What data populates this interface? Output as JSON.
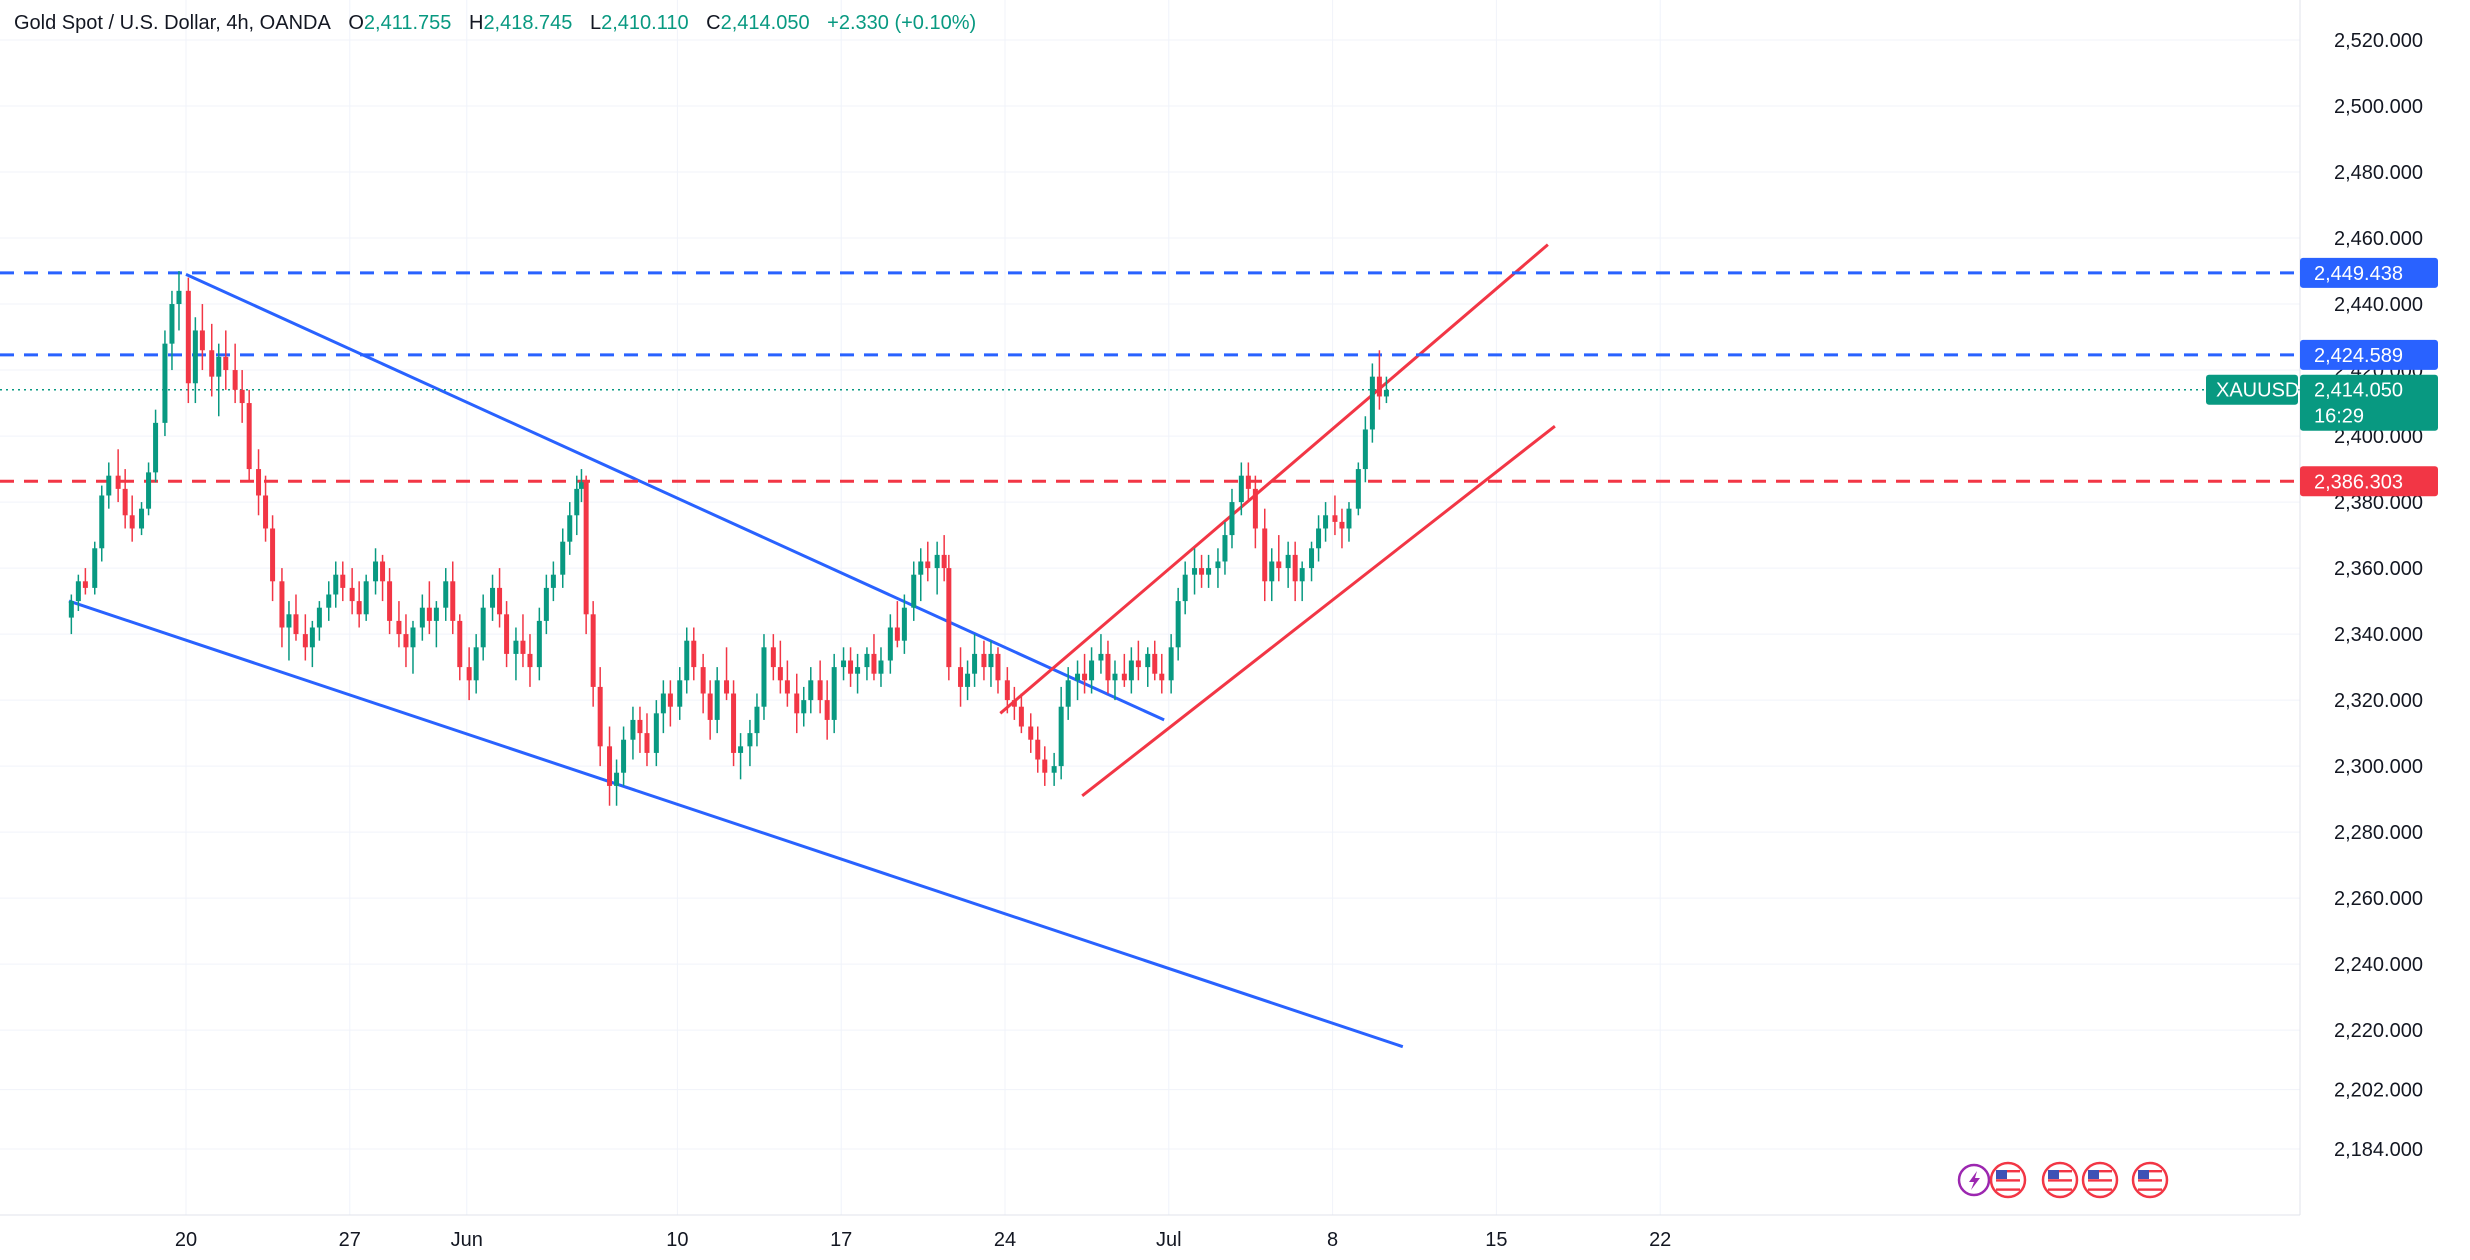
{
  "legend": {
    "symbol_desc": "Gold Spot / U.S. Dollar, 4h, OANDA",
    "o_label": "O",
    "o_value": "2,411.755",
    "h_label": "H",
    "h_value": "2,418.745",
    "l_label": "L",
    "l_value": "2,410.110",
    "c_label": "C",
    "c_value": "2,414.050",
    "change": "+2.330 (+0.10%)"
  },
  "colors": {
    "up": "#089981",
    "down": "#f23645",
    "blue_line": "#2962ff",
    "red_line": "#f23645",
    "grid": "#f0f3fa",
    "price_badge": "#089981"
  },
  "chart_data": {
    "type": "candlestick",
    "title": "Gold Spot / U.S. Dollar, 4h, OANDA",
    "symbol": "XAUUSD",
    "ylim": [
      2175,
      2535
    ],
    "y_ticks": [
      "2,520.000",
      "2,500.000",
      "2,480.000",
      "2,460.000",
      "2,440.000",
      "2,420.000",
      "2,400.000",
      "2,380.000",
      "2,360.000",
      "2,340.000",
      "2,320.000",
      "2,300.000",
      "2,280.000",
      "2,260.000",
      "2,240.000",
      "2,220.000",
      "2,202.000",
      "2,184.000"
    ],
    "y_tick_values": [
      2520,
      2500,
      2480,
      2460,
      2440,
      2420,
      2400,
      2380,
      2360,
      2340,
      2320,
      2300,
      2280,
      2260,
      2240,
      2220,
      2202,
      2184
    ],
    "x_ticks": [
      "20",
      "27",
      "Jun",
      "10",
      "17",
      "24",
      "Jul",
      "8",
      "15",
      "22"
    ],
    "x_tick_days": [
      0,
      7,
      12,
      21,
      28,
      35,
      42,
      49,
      56,
      63
    ],
    "x_domain_days": [
      -5,
      64.5
    ],
    "current_price": {
      "label": "XAUUSD",
      "value": "2,414.050",
      "countdown": "16:29",
      "price": 2414.05
    },
    "horizontal_lines": [
      {
        "price": 2449.438,
        "label": "2,449.438",
        "color": "blue"
      },
      {
        "price": 2424.589,
        "label": "2,424.589",
        "color": "blue"
      },
      {
        "price": 2386.303,
        "label": "2,386.303",
        "color": "red"
      }
    ],
    "trend_lines": [
      {
        "color": "blue",
        "start": [
          0,
          2449
        ],
        "end": [
          41.8,
          2314
        ]
      },
      {
        "color": "blue",
        "start": [
          -5,
          2350
        ],
        "end": [
          52.0,
          2215
        ]
      },
      {
        "color": "red",
        "start": [
          34.8,
          2316
        ],
        "end": [
          58.2,
          2458
        ]
      },
      {
        "color": "red",
        "start": [
          38.3,
          2291
        ],
        "end": [
          58.5,
          2403
        ]
      }
    ],
    "candles": [
      [
        -4.9,
        2345,
        2352,
        2340,
        2350
      ],
      [
        -4.6,
        2350,
        2358,
        2347,
        2356
      ],
      [
        -4.3,
        2356,
        2360,
        2352,
        2354
      ],
      [
        -3.9,
        2354,
        2368,
        2352,
        2366
      ],
      [
        -3.6,
        2366,
        2385,
        2362,
        2382
      ],
      [
        -3.3,
        2382,
        2392,
        2378,
        2388
      ],
      [
        -2.9,
        2388,
        2396,
        2380,
        2384
      ],
      [
        -2.6,
        2384,
        2390,
        2372,
        2376
      ],
      [
        -2.3,
        2376,
        2382,
        2368,
        2372
      ],
      [
        -1.9,
        2372,
        2380,
        2370,
        2378
      ],
      [
        -1.6,
        2378,
        2392,
        2376,
        2389
      ],
      [
        -1.3,
        2389,
        2408,
        2386,
        2404
      ],
      [
        -0.9,
        2404,
        2432,
        2400,
        2428
      ],
      [
        -0.6,
        2428,
        2444,
        2420,
        2440
      ],
      [
        -0.3,
        2440,
        2450,
        2432,
        2444
      ],
      [
        0.1,
        2444,
        2448,
        2410,
        2416
      ],
      [
        0.4,
        2416,
        2436,
        2410,
        2432
      ],
      [
        0.7,
        2432,
        2440,
        2420,
        2426
      ],
      [
        1.1,
        2426,
        2434,
        2412,
        2418
      ],
      [
        1.4,
        2418,
        2428,
        2406,
        2424
      ],
      [
        1.7,
        2424,
        2432,
        2414,
        2420
      ],
      [
        2.1,
        2420,
        2428,
        2410,
        2414
      ],
      [
        2.4,
        2414,
        2420,
        2404,
        2410
      ],
      [
        2.7,
        2410,
        2414,
        2386,
        2390
      ],
      [
        3.1,
        2390,
        2396,
        2376,
        2382
      ],
      [
        3.4,
        2382,
        2388,
        2368,
        2372
      ],
      [
        3.7,
        2372,
        2376,
        2350,
        2356
      ],
      [
        4.1,
        2356,
        2360,
        2336,
        2342
      ],
      [
        4.4,
        2342,
        2350,
        2332,
        2346
      ],
      [
        4.7,
        2346,
        2352,
        2338,
        2340
      ],
      [
        5.1,
        2340,
        2346,
        2332,
        2336
      ],
      [
        5.4,
        2336,
        2344,
        2330,
        2342
      ],
      [
        5.7,
        2342,
        2350,
        2338,
        2348
      ],
      [
        6.1,
        2348,
        2356,
        2344,
        2352
      ],
      [
        6.4,
        2352,
        2362,
        2348,
        2358
      ],
      [
        6.7,
        2358,
        2362,
        2350,
        2354
      ],
      [
        7.1,
        2354,
        2360,
        2346,
        2350
      ],
      [
        7.4,
        2350,
        2356,
        2342,
        2346
      ],
      [
        7.7,
        2346,
        2358,
        2344,
        2356
      ],
      [
        8.1,
        2356,
        2366,
        2352,
        2362
      ],
      [
        8.4,
        2362,
        2364,
        2350,
        2356
      ],
      [
        8.7,
        2356,
        2360,
        2340,
        2344
      ],
      [
        9.1,
        2344,
        2350,
        2336,
        2340
      ],
      [
        9.4,
        2340,
        2346,
        2330,
        2336
      ],
      [
        9.7,
        2336,
        2344,
        2328,
        2342
      ],
      [
        10.1,
        2342,
        2352,
        2338,
        2348
      ],
      [
        10.4,
        2348,
        2356,
        2340,
        2344
      ],
      [
        10.7,
        2344,
        2350,
        2336,
        2348
      ],
      [
        11.1,
        2348,
        2360,
        2344,
        2356
      ],
      [
        11.4,
        2356,
        2362,
        2340,
        2344
      ],
      [
        11.7,
        2344,
        2346,
        2326,
        2330
      ],
      [
        12.1,
        2330,
        2336,
        2320,
        2326
      ],
      [
        12.4,
        2326,
        2340,
        2322,
        2336
      ],
      [
        12.7,
        2336,
        2352,
        2332,
        2348
      ],
      [
        13.1,
        2348,
        2358,
        2344,
        2354
      ],
      [
        13.4,
        2354,
        2360,
        2342,
        2346
      ],
      [
        13.7,
        2346,
        2350,
        2330,
        2334
      ],
      [
        14.1,
        2334,
        2342,
        2326,
        2338
      ],
      [
        14.4,
        2338,
        2346,
        2330,
        2334
      ],
      [
        14.7,
        2334,
        2340,
        2324,
        2330
      ],
      [
        15.1,
        2330,
        2348,
        2326,
        2344
      ],
      [
        15.4,
        2344,
        2358,
        2340,
        2354
      ],
      [
        15.7,
        2354,
        2362,
        2350,
        2358
      ],
      [
        16.1,
        2358,
        2372,
        2354,
        2368
      ],
      [
        16.4,
        2368,
        2380,
        2364,
        2376
      ],
      [
        16.7,
        2376,
        2388,
        2370,
        2384
      ],
      [
        16.9,
        2384,
        2390,
        2380,
        2386
      ],
      [
        17.1,
        2386,
        2388,
        2340,
        2346
      ],
      [
        17.4,
        2346,
        2350,
        2318,
        2324
      ],
      [
        17.7,
        2324,
        2330,
        2300,
        2306
      ],
      [
        18.1,
        2306,
        2312,
        2288,
        2294
      ],
      [
        18.4,
        2294,
        2302,
        2288,
        2298
      ],
      [
        18.7,
        2298,
        2312,
        2294,
        2308
      ],
      [
        19.1,
        2308,
        2318,
        2302,
        2314
      ],
      [
        19.4,
        2314,
        2318,
        2304,
        2310
      ],
      [
        19.7,
        2310,
        2316,
        2300,
        2304
      ],
      [
        20.1,
        2304,
        2320,
        2300,
        2316
      ],
      [
        20.4,
        2316,
        2326,
        2310,
        2322
      ],
      [
        20.7,
        2322,
        2326,
        2312,
        2318
      ],
      [
        21.1,
        2318,
        2330,
        2314,
        2326
      ],
      [
        21.4,
        2326,
        2342,
        2322,
        2338
      ],
      [
        21.7,
        2338,
        2342,
        2326,
        2330
      ],
      [
        22.1,
        2330,
        2334,
        2316,
        2322
      ],
      [
        22.4,
        2322,
        2326,
        2308,
        2314
      ],
      [
        22.7,
        2314,
        2330,
        2310,
        2326
      ],
      [
        23.1,
        2326,
        2336,
        2320,
        2322
      ],
      [
        23.4,
        2322,
        2326,
        2300,
        2304
      ],
      [
        23.7,
        2304,
        2310,
        2296,
        2306
      ],
      [
        24.1,
        2306,
        2314,
        2300,
        2310
      ],
      [
        24.4,
        2310,
        2322,
        2306,
        2318
      ],
      [
        24.7,
        2318,
        2340,
        2314,
        2336
      ],
      [
        25.1,
        2336,
        2340,
        2326,
        2330
      ],
      [
        25.4,
        2330,
        2338,
        2322,
        2326
      ],
      [
        25.7,
        2326,
        2332,
        2318,
        2322
      ],
      [
        26.1,
        2322,
        2328,
        2310,
        2316
      ],
      [
        26.4,
        2316,
        2324,
        2312,
        2320
      ],
      [
        26.7,
        2320,
        2330,
        2316,
        2326
      ],
      [
        27.1,
        2326,
        2332,
        2316,
        2320
      ],
      [
        27.4,
        2320,
        2326,
        2308,
        2314
      ],
      [
        27.7,
        2314,
        2334,
        2310,
        2330
      ],
      [
        28.1,
        2330,
        2336,
        2326,
        2332
      ],
      [
        28.4,
        2332,
        2336,
        2324,
        2328
      ],
      [
        28.7,
        2328,
        2334,
        2322,
        2330
      ],
      [
        29.1,
        2330,
        2336,
        2326,
        2334
      ],
      [
        29.4,
        2334,
        2340,
        2326,
        2328
      ],
      [
        29.7,
        2328,
        2336,
        2324,
        2332
      ],
      [
        30.1,
        2332,
        2346,
        2328,
        2342
      ],
      [
        30.4,
        2342,
        2350,
        2336,
        2338
      ],
      [
        30.7,
        2338,
        2352,
        2334,
        2348
      ],
      [
        31.1,
        2348,
        2362,
        2344,
        2358
      ],
      [
        31.4,
        2358,
        2366,
        2350,
        2362
      ],
      [
        31.7,
        2362,
        2368,
        2356,
        2360
      ],
      [
        32.1,
        2360,
        2368,
        2352,
        2364
      ],
      [
        32.4,
        2364,
        2370,
        2356,
        2360
      ],
      [
        32.6,
        2360,
        2364,
        2326,
        2330
      ],
      [
        33.1,
        2330,
        2336,
        2318,
        2324
      ],
      [
        33.4,
        2324,
        2332,
        2320,
        2328
      ],
      [
        33.7,
        2328,
        2340,
        2324,
        2334
      ],
      [
        34.1,
        2334,
        2338,
        2326,
        2330
      ],
      [
        34.4,
        2330,
        2338,
        2324,
        2334
      ],
      [
        34.7,
        2334,
        2336,
        2322,
        2326
      ],
      [
        35.1,
        2326,
        2330,
        2316,
        2320
      ],
      [
        35.4,
        2320,
        2324,
        2314,
        2318
      ],
      [
        35.7,
        2318,
        2322,
        2310,
        2312
      ],
      [
        36.1,
        2312,
        2316,
        2304,
        2308
      ],
      [
        36.4,
        2308,
        2312,
        2298,
        2302
      ],
      [
        36.7,
        2302,
        2306,
        2294,
        2298
      ],
      [
        37.1,
        2298,
        2304,
        2294,
        2300
      ],
      [
        37.4,
        2300,
        2324,
        2296,
        2318
      ],
      [
        37.7,
        2318,
        2330,
        2314,
        2326
      ],
      [
        38.1,
        2326,
        2332,
        2320,
        2328
      ],
      [
        38.4,
        2328,
        2334,
        2322,
        2326
      ],
      [
        38.7,
        2326,
        2336,
        2322,
        2332
      ],
      [
        39.1,
        2332,
        2340,
        2328,
        2334
      ],
      [
        39.4,
        2334,
        2338,
        2322,
        2326
      ],
      [
        39.7,
        2326,
        2332,
        2320,
        2328
      ],
      [
        40.1,
        2328,
        2334,
        2324,
        2326
      ],
      [
        40.4,
        2326,
        2336,
        2322,
        2332
      ],
      [
        40.7,
        2332,
        2338,
        2326,
        2330
      ],
      [
        41.1,
        2330,
        2336,
        2324,
        2334
      ],
      [
        41.4,
        2334,
        2338,
        2326,
        2328
      ],
      [
        41.7,
        2328,
        2334,
        2322,
        2326
      ],
      [
        42.1,
        2326,
        2340,
        2322,
        2336
      ],
      [
        42.4,
        2336,
        2354,
        2332,
        2350
      ],
      [
        42.7,
        2350,
        2362,
        2346,
        2358
      ],
      [
        43.1,
        2358,
        2366,
        2352,
        2360
      ],
      [
        43.4,
        2360,
        2364,
        2354,
        2358
      ],
      [
        43.7,
        2358,
        2364,
        2354,
        2360
      ],
      [
        44.1,
        2360,
        2366,
        2354,
        2362
      ],
      [
        44.4,
        2362,
        2374,
        2358,
        2370
      ],
      [
        44.7,
        2370,
        2384,
        2366,
        2380
      ],
      [
        45.1,
        2380,
        2392,
        2376,
        2388
      ],
      [
        45.4,
        2388,
        2392,
        2380,
        2384
      ],
      [
        45.7,
        2384,
        2388,
        2366,
        2372
      ],
      [
        46.1,
        2372,
        2378,
        2350,
        2356
      ],
      [
        46.4,
        2356,
        2366,
        2350,
        2362
      ],
      [
        46.7,
        2362,
        2370,
        2356,
        2360
      ],
      [
        47.1,
        2360,
        2368,
        2354,
        2364
      ],
      [
        47.4,
        2364,
        2368,
        2350,
        2356
      ],
      [
        47.7,
        2356,
        2362,
        2350,
        2360
      ],
      [
        48.1,
        2360,
        2368,
        2356,
        2366
      ],
      [
        48.4,
        2366,
        2376,
        2362,
        2372
      ],
      [
        48.7,
        2372,
        2380,
        2368,
        2376
      ],
      [
        49.1,
        2376,
        2382,
        2370,
        2374
      ],
      [
        49.4,
        2374,
        2378,
        2366,
        2372
      ],
      [
        49.7,
        2372,
        2380,
        2368,
        2378
      ],
      [
        50.1,
        2378,
        2392,
        2376,
        2390
      ],
      [
        50.4,
        2390,
        2406,
        2386,
        2402
      ],
      [
        50.7,
        2402,
        2422,
        2398,
        2418
      ],
      [
        51.0,
        2418,
        2426,
        2408,
        2412
      ],
      [
        51.3,
        2412,
        2418,
        2410,
        2414
      ]
    ]
  },
  "event_icons": [
    "lightning-flag-icon",
    "us-flag-icon",
    "us-flag-icon",
    "us-flag-icon",
    "us-flag-icon"
  ]
}
